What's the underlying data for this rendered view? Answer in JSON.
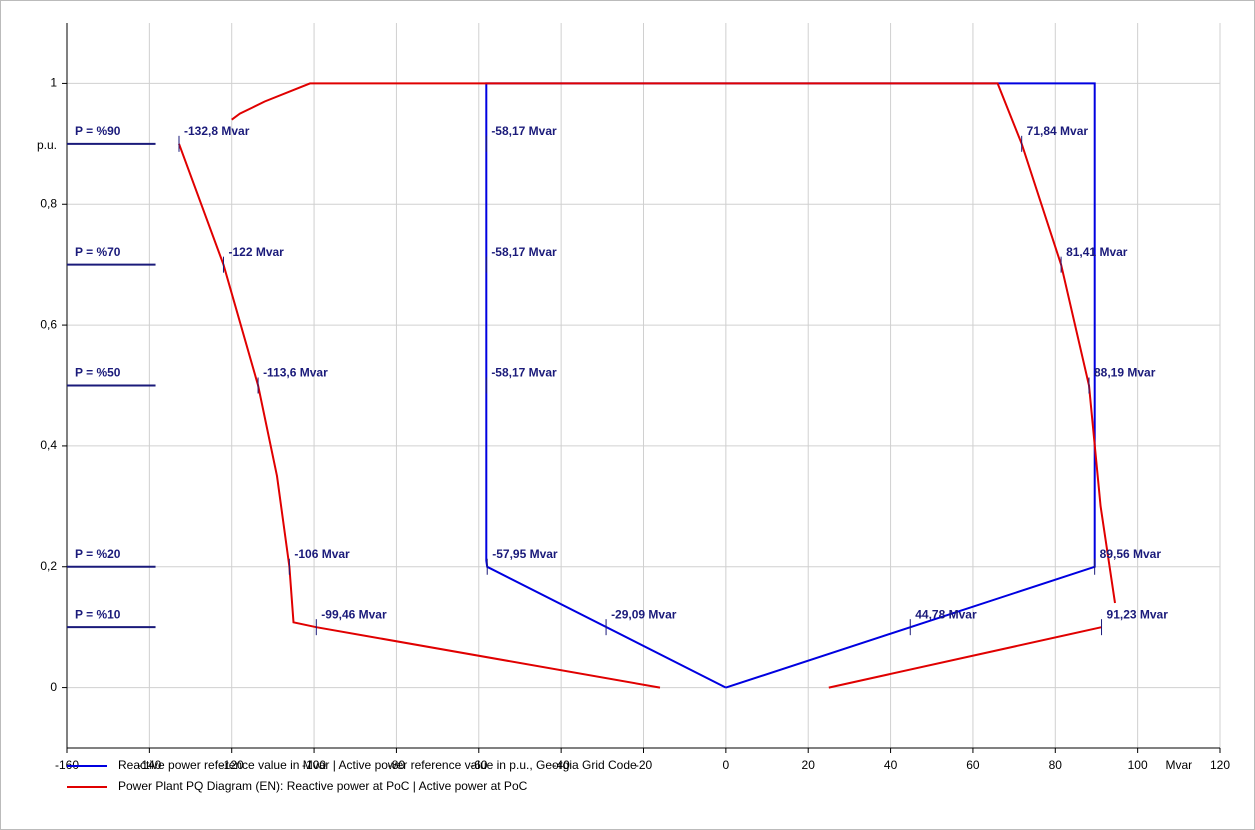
{
  "chart_data": {
    "type": "line",
    "xlim": [
      -160,
      120
    ],
    "ylim": [
      -0.1,
      1.1
    ],
    "xticks": [
      -160,
      -140,
      -120,
      -100,
      -80,
      -60,
      -40,
      -20,
      0,
      20,
      40,
      60,
      80,
      100,
      120
    ],
    "yticks": [
      0,
      {
        "value": 0.2,
        "label": "0,2"
      },
      {
        "value": 0.4,
        "label": "0,4"
      },
      {
        "value": 0.6,
        "label": "0,6"
      },
      {
        "value": 0.8,
        "label": "0,8"
      },
      1
    ],
    "x_label": "Mvar",
    "y_label": "p.u.",
    "grid": true,
    "series": [
      {
        "name": "Reactive power reference value in Mvar | Active power reference value in p.u., Georgia Grid Code",
        "color": "#0000e0",
        "x": [
          0,
          -57.95,
          -58.17,
          -58.17,
          89.56,
          89.56,
          0
        ],
        "values": [
          0,
          0.2,
          0.21,
          1,
          1,
          0.2,
          0
        ]
      },
      {
        "name": "Power Plant PQ Diagram (EN): Reactive power at PoC  |  Active power at PoC",
        "color": "#e00000",
        "x": [
          -16,
          -99.46,
          -105,
          -106,
          -109,
          -113.6,
          -122,
          -132.8,
          null,
          -120,
          -118,
          -115,
          -112,
          -101,
          66,
          71.84,
          81.41,
          88.19,
          91,
          94.5,
          null,
          25,
          91.23
        ],
        "values": [
          0,
          0.1,
          0.108,
          0.2,
          0.35,
          0.5,
          0.7,
          0.9,
          null,
          0.94,
          0.95,
          0.96,
          0.97,
          1,
          1,
          0.9,
          0.7,
          0.5,
          0.3,
          0.14,
          null,
          0,
          0.1
        ]
      }
    ],
    "levels": [
      {
        "value": 0.9,
        "label": "P = %90"
      },
      {
        "value": 0.7,
        "label": "P = %70"
      },
      {
        "value": 0.5,
        "label": "P = %50"
      },
      {
        "value": 0.2,
        "label": "P = %20"
      },
      {
        "value": 0.1,
        "label": "P = %10"
      }
    ],
    "annotations": [
      {
        "x": -132.8,
        "y": 0.9,
        "label": "-132,8 Mvar"
      },
      {
        "x": -58.17,
        "y": 0.9,
        "label": "-58,17 Mvar"
      },
      {
        "x": 71.84,
        "y": 0.9,
        "label": "71,84 Mvar"
      },
      {
        "x": -122,
        "y": 0.7,
        "label": "-122 Mvar"
      },
      {
        "x": -58.17,
        "y": 0.7,
        "label": "-58,17 Mvar"
      },
      {
        "x": 81.41,
        "y": 0.7,
        "label": "81,41 Mvar"
      },
      {
        "x": -113.6,
        "y": 0.5,
        "label": "-113,6 Mvar"
      },
      {
        "x": -58.17,
        "y": 0.5,
        "label": "-58,17 Mvar"
      },
      {
        "x": 88.19,
        "y": 0.5,
        "label": "88,19 Mvar"
      },
      {
        "x": -106,
        "y": 0.2,
        "label": "-106 Mvar"
      },
      {
        "x": -57.95,
        "y": 0.2,
        "label": "-57,95 Mvar"
      },
      {
        "x": 89.56,
        "y": 0.2,
        "label": "89,56 Mvar"
      },
      {
        "x": -99.46,
        "y": 0.1,
        "label": "-99,46 Mvar"
      },
      {
        "x": -29.09,
        "y": 0.1,
        "label": "-29,09 Mvar"
      },
      {
        "x": 44.78,
        "y": 0.1,
        "label": "44,78 Mvar"
      },
      {
        "x": 91.23,
        "y": 0.1,
        "label": "91,23 Mvar"
      }
    ]
  }
}
